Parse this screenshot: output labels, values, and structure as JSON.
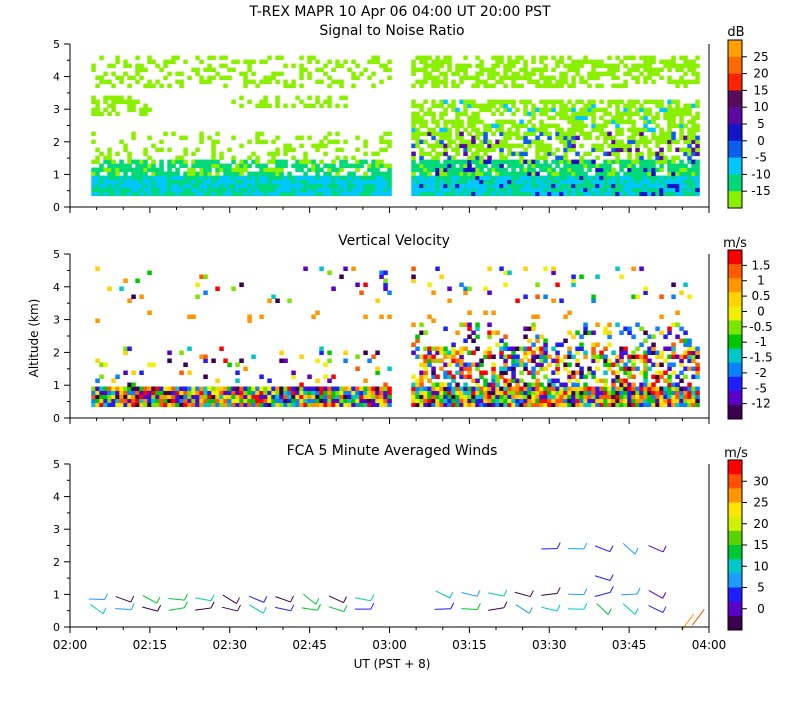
{
  "title": "T-REX  MAPR 10 Apr 06  04:00 UT  20:00  PST",
  "x_axis": {
    "label": "UT  (PST + 8)",
    "ticks": [
      "02:00",
      "02:15",
      "02:30",
      "02:45",
      "03:00",
      "03:15",
      "03:30",
      "03:45",
      "04:00"
    ],
    "range": [
      "02:00",
      "04:00"
    ],
    "data_gap": [
      "03:00",
      "03:04"
    ]
  },
  "chart_data": [
    {
      "type": "heatmap",
      "title": "Signal to Noise Ratio",
      "xlabel": "UT  (PST + 8)",
      "ylabel": "",
      "ylim": [
        0,
        5
      ],
      "yticks": [
        "0",
        "1",
        "2",
        "3",
        "4",
        "5"
      ],
      "colorbar": {
        "unit": "dB",
        "labels": [
          "25",
          "20",
          "15",
          "10",
          "5",
          "0",
          "-5",
          "-10",
          "-15"
        ],
        "colors": [
          "#ffa000",
          "#ff6a00",
          "#ff2400",
          "#5a0a5a",
          "#5a0aa0",
          "#1414c8",
          "#0a5ff0",
          "#00c8ff",
          "#00d87a",
          "#8af000"
        ]
      }
    },
    {
      "type": "heatmap",
      "title": "Vertical Velocity",
      "xlabel": "UT  (PST + 8)",
      "ylabel": "Altitude  (km)",
      "ylim": [
        0,
        5
      ],
      "yticks": [
        "0",
        "1",
        "2",
        "3",
        "4",
        "5"
      ],
      "colorbar": {
        "unit": "m/s",
        "labels": [
          "1.5",
          "1",
          "0.5",
          "0",
          "-0.5",
          "-1",
          "-1.5",
          "-2",
          "-5",
          "-12"
        ],
        "colors": [
          "#ff0000",
          "#ff5a00",
          "#ff9600",
          "#ffd200",
          "#f0f000",
          "#7ae600",
          "#00c800",
          "#00c8c8",
          "#0a82ff",
          "#1e1eff",
          "#5a00c8",
          "#3c0050"
        ]
      }
    },
    {
      "type": "scatter",
      "title": "FCA 5 Minute Averaged Winds",
      "xlabel": "UT  (PST + 8)",
      "ylabel": "",
      "ylim": [
        0,
        5
      ],
      "yticks": [
        "0",
        "1",
        "2",
        "3",
        "4",
        "5"
      ],
      "colorbar": {
        "unit": "m/s",
        "labels": [
          "30",
          "25",
          "20",
          "15",
          "10",
          "5",
          "0"
        ],
        "colors": [
          "#ff0000",
          "#ff5000",
          "#ff9600",
          "#ffe600",
          "#d2f000",
          "#5ad200",
          "#00c832",
          "#00c8c8",
          "#1e9bff",
          "#1e1eff",
          "#5a00c8",
          "#3c0050"
        ]
      }
    }
  ]
}
